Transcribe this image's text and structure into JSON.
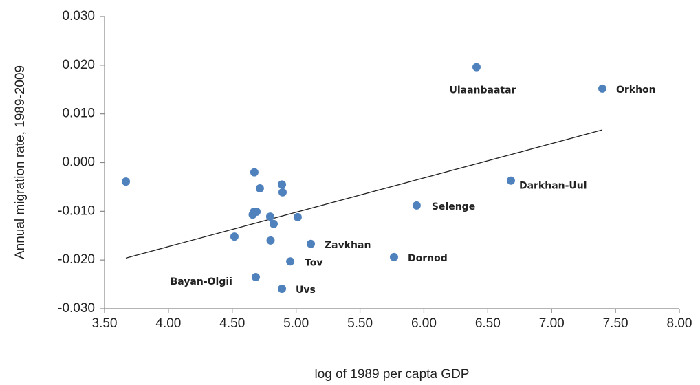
{
  "chart_data": {
    "type": "scatter",
    "x_label": "log of 1989 per capta GDP",
    "y_label": "Annual migration rate, 1989-2009",
    "color": "#4f81bd",
    "x": [
      3.667,
      4.673,
      4.716,
      4.889,
      4.894,
      4.67,
      4.69,
      4.66,
      4.797,
      4.824,
      5.012,
      4.517,
      4.8,
      5.115,
      4.954,
      5.766,
      4.684,
      4.889,
      5.943,
      6.681,
      6.412,
      7.397
    ],
    "values": [
      -0.0039,
      -0.002,
      -0.0053,
      -0.0045,
      -0.0061,
      -0.0101,
      -0.0101,
      -0.0107,
      -0.0111,
      -0.0126,
      -0.0112,
      -0.0152,
      -0.016,
      -0.0167,
      -0.0203,
      -0.0194,
      -0.0235,
      -0.0259,
      -0.0088,
      -0.0037,
      0.0196,
      0.0152
    ],
    "labels": [
      null,
      null,
      null,
      null,
      null,
      null,
      null,
      null,
      null,
      null,
      null,
      null,
      null,
      "Zavkhan",
      "Tov",
      "Dornod",
      "Bayan-Olgii",
      "Uvs",
      "Selenge",
      "Darkhan-Uul",
      "Ulaanbaatar",
      "Orkhon"
    ],
    "trendline": {
      "x": [
        3.667,
        7.397
      ],
      "values": [
        -0.0196,
        0.0067
      ]
    },
    "xlim": [
      3.5,
      8.0
    ],
    "ylim": [
      -0.03,
      0.03
    ],
    "xticks": [
      {
        "value": 3.5,
        "label": "3.50"
      },
      {
        "value": 4,
        "label": "4.00"
      },
      {
        "value": 4.5,
        "label": "4.50"
      },
      {
        "value": 5,
        "label": "5.00"
      },
      {
        "value": 5.5,
        "label": "5.50"
      },
      {
        "value": 6,
        "label": "6.00"
      },
      {
        "value": 6.5,
        "label": "6.50"
      },
      {
        "value": 7,
        "label": "7.00"
      },
      {
        "value": 7.5,
        "label": "7.50"
      },
      {
        "value": 8,
        "label": "8.00"
      }
    ],
    "yticks": [
      {
        "value": -0.03,
        "label": "-0.030"
      },
      {
        "value": -0.02,
        "label": "-0.020"
      },
      {
        "value": -0.01,
        "label": "-0.010"
      },
      {
        "value": 0,
        "label": "0.000"
      },
      {
        "value": 0.01,
        "label": "0.010"
      },
      {
        "value": 0.02,
        "label": "0.020"
      },
      {
        "value": 0.03,
        "label": "0.030"
      }
    ],
    "grid": false
  }
}
